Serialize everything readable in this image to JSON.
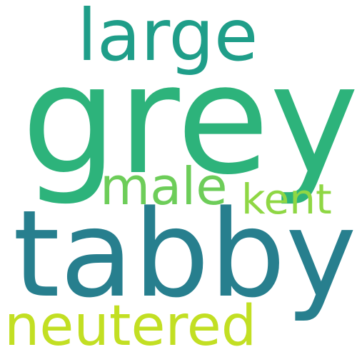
{
  "words": [
    {
      "text": "large",
      "color": "#1f9e89"
    },
    {
      "text": "grey",
      "color": "#2db37b"
    },
    {
      "text": "male",
      "color": "#6dcd59"
    },
    {
      "text": "kent",
      "color": "#8fd744"
    },
    {
      "text": "tabby",
      "color": "#277f8e"
    },
    {
      "text": "neutered",
      "color": "#c2df23"
    }
  ]
}
